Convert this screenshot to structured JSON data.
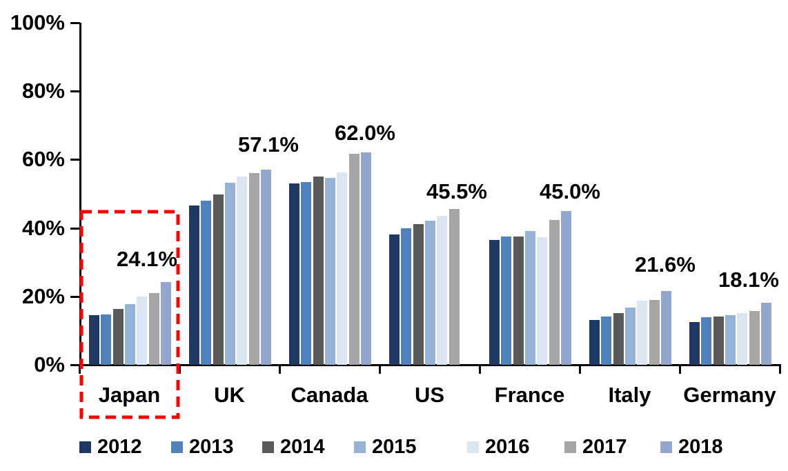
{
  "chart_data": {
    "type": "bar",
    "title": "",
    "xlabel": "",
    "ylabel": "",
    "ylim": [
      0,
      100
    ],
    "grid": false,
    "legend_position": "bottom",
    "y_ticks": [
      "0%",
      "20%",
      "40%",
      "60%",
      "80%",
      "100%"
    ],
    "categories": [
      "Japan",
      "UK",
      "Canada",
      "US",
      "France",
      "Italy",
      "Germany"
    ],
    "series": [
      {
        "name": "2012",
        "color": "#1F3864",
        "values": [
          14.5,
          46.5,
          53.1,
          38.2,
          36.5,
          13.1,
          12.5
        ]
      },
      {
        "name": "2013",
        "color": "#4F81BD",
        "values": [
          14.8,
          47.9,
          53.5,
          40.0,
          37.6,
          14.1,
          13.9
        ]
      },
      {
        "name": "2014",
        "color": "#595959",
        "values": [
          16.4,
          49.9,
          55.0,
          41.2,
          37.5,
          15.1,
          14.2
        ]
      },
      {
        "name": "2015",
        "color": "#95B3D7",
        "values": [
          17.8,
          53.3,
          54.7,
          42.2,
          39.2,
          16.8,
          14.6
        ]
      },
      {
        "name": "2016",
        "color": "#DCE6F2",
        "values": [
          19.9,
          55.0,
          56.2,
          43.6,
          37.3,
          18.8,
          15.2
        ]
      },
      {
        "name": "2017",
        "color": "#A6A6A6",
        "values": [
          20.9,
          56.0,
          61.7,
          45.5,
          42.3,
          19.0,
          15.8
        ]
      },
      {
        "name": "2018",
        "color": "#93A7CE",
        "values": [
          24.1,
          57.1,
          62.0,
          null,
          45.0,
          21.6,
          18.1
        ]
      }
    ],
    "data_labels": [
      "24.1%",
      "57.1%",
      "62.0%",
      "45.5%",
      "45.0%",
      "21.6%",
      "18.1%"
    ],
    "annotation": {
      "type": "dashed-rectangle-highlight",
      "target_category": "Japan",
      "color": "#FF0000"
    }
  }
}
